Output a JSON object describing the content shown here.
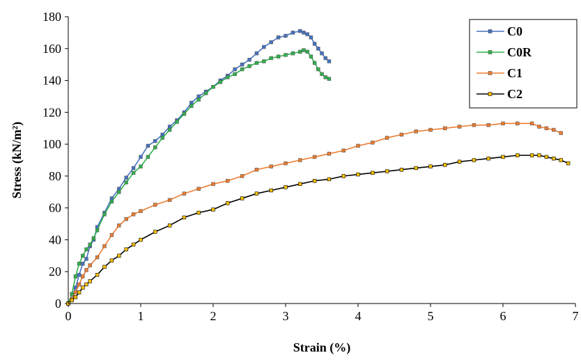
{
  "chart_data": {
    "type": "line",
    "xlabel": "Strain (%)",
    "ylabel": "Stress (kN/m²)",
    "xlim": [
      0,
      7
    ],
    "ylim": [
      0,
      180
    ],
    "xticks": [
      "0",
      "1",
      "2",
      "3",
      "4",
      "5",
      "6",
      "7"
    ],
    "yticks": [
      "0",
      "20",
      "40",
      "60",
      "80",
      "100",
      "120",
      "140",
      "160",
      "180"
    ],
    "grid": false,
    "legend_position": "top-right",
    "series": [
      {
        "name": "C0",
        "color": "#4472C4",
        "x": [
          0,
          0.05,
          0.1,
          0.15,
          0.2,
          0.25,
          0.3,
          0.35,
          0.4,
          0.5,
          0.6,
          0.7,
          0.8,
          0.9,
          1.0,
          1.1,
          1.2,
          1.3,
          1.4,
          1.5,
          1.6,
          1.7,
          1.8,
          1.9,
          2.0,
          2.1,
          2.2,
          2.3,
          2.4,
          2.5,
          2.6,
          2.7,
          2.8,
          2.9,
          3.0,
          3.1,
          3.2,
          3.25,
          3.3,
          3.35,
          3.4,
          3.45,
          3.5,
          3.55,
          3.6
        ],
        "y": [
          0,
          3,
          10,
          18,
          25,
          28,
          36,
          40,
          48,
          57,
          66,
          72,
          79,
          85,
          92,
          99,
          102,
          106,
          111,
          115,
          120,
          126,
          130,
          133,
          136,
          140,
          143,
          147,
          150,
          153,
          157,
          161,
          164,
          167,
          168,
          170,
          171,
          170,
          169,
          167,
          163,
          160,
          157,
          154,
          152
        ]
      },
      {
        "name": "C0R",
        "color": "#2EB24B",
        "x": [
          0,
          0.05,
          0.1,
          0.15,
          0.2,
          0.25,
          0.3,
          0.35,
          0.4,
          0.5,
          0.6,
          0.7,
          0.8,
          0.9,
          1.0,
          1.1,
          1.2,
          1.3,
          1.4,
          1.5,
          1.6,
          1.7,
          1.8,
          1.9,
          2.0,
          2.1,
          2.2,
          2.3,
          2.4,
          2.5,
          2.6,
          2.7,
          2.8,
          2.9,
          3.0,
          3.1,
          3.2,
          3.25,
          3.3,
          3.35,
          3.4,
          3.45,
          3.5,
          3.55,
          3.6
        ],
        "y": [
          0,
          6,
          17,
          25,
          30,
          34,
          37,
          41,
          46,
          56,
          64,
          70,
          76,
          82,
          86,
          92,
          98,
          104,
          109,
          114,
          119,
          124,
          128,
          132,
          136,
          139,
          142,
          144,
          147,
          149,
          151,
          152,
          154,
          155,
          156,
          157,
          158,
          159,
          158,
          155,
          151,
          147,
          144,
          142,
          141
        ]
      },
      {
        "name": "C1",
        "color": "#ED7D31",
        "x": [
          0,
          0.05,
          0.1,
          0.15,
          0.2,
          0.25,
          0.3,
          0.4,
          0.5,
          0.6,
          0.7,
          0.8,
          0.9,
          1.0,
          1.2,
          1.4,
          1.6,
          1.8,
          2.0,
          2.2,
          2.4,
          2.6,
          2.8,
          3.0,
          3.2,
          3.4,
          3.6,
          3.8,
          4.0,
          4.2,
          4.4,
          4.6,
          4.8,
          5.0,
          5.2,
          5.4,
          5.6,
          5.8,
          6.0,
          6.2,
          6.4,
          6.5,
          6.6,
          6.7,
          6.8
        ],
        "y": [
          0,
          3,
          7,
          12,
          17,
          21,
          24,
          29,
          36,
          43,
          49,
          53,
          56,
          58,
          62,
          65,
          69,
          72,
          75,
          77,
          80,
          84,
          86,
          88,
          90,
          92,
          94,
          96,
          99,
          101,
          104,
          106,
          108,
          109,
          110,
          111,
          112,
          112,
          113,
          113,
          113,
          111,
          110,
          109,
          107
        ]
      },
      {
        "name": "C2",
        "color": "#000000",
        "marker_fill": "#F5C000",
        "x": [
          0,
          0.05,
          0.1,
          0.15,
          0.2,
          0.25,
          0.3,
          0.4,
          0.5,
          0.6,
          0.7,
          0.8,
          0.9,
          1.0,
          1.2,
          1.4,
          1.6,
          1.8,
          2.0,
          2.2,
          2.4,
          2.6,
          2.8,
          3.0,
          3.2,
          3.4,
          3.6,
          3.8,
          4.0,
          4.2,
          4.4,
          4.6,
          4.8,
          5.0,
          5.2,
          5.4,
          5.6,
          5.8,
          6.0,
          6.2,
          6.4,
          6.5,
          6.6,
          6.7,
          6.8,
          6.9
        ],
        "y": [
          0,
          2,
          4,
          7,
          10,
          12,
          14,
          18,
          23,
          27,
          30,
          34,
          37,
          40,
          45,
          49,
          54,
          57,
          59,
          63,
          66,
          69,
          71,
          73,
          75,
          77,
          78,
          80,
          81,
          82,
          83,
          84,
          85,
          86,
          87,
          89,
          90,
          91,
          92,
          93,
          93,
          93,
          92,
          91,
          90,
          88
        ]
      }
    ]
  }
}
